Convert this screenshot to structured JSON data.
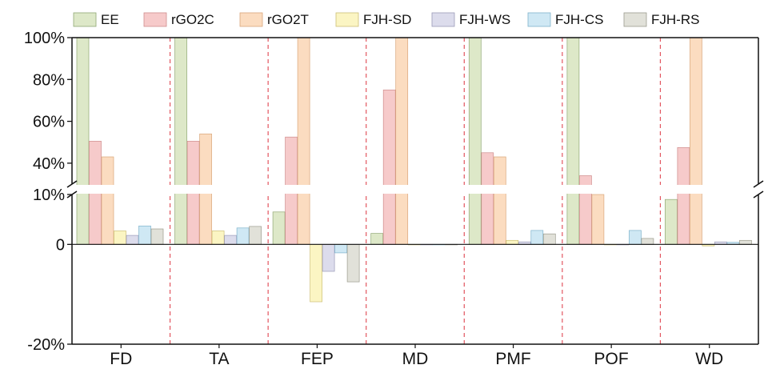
{
  "chart_data": {
    "type": "bar",
    "title": "",
    "xlabel": "",
    "ylabel": "",
    "axis_break": {
      "lower_range": [
        -20,
        10
      ],
      "upper_range": [
        30,
        100
      ],
      "break_between": [
        10,
        30
      ]
    },
    "yticks_lower": [
      {
        "value": -20,
        "label": "-20%"
      },
      {
        "value": 0,
        "label": "0"
      },
      {
        "value": 10,
        "label": "10%"
      }
    ],
    "yticks_upper": [
      {
        "value": 40,
        "label": "40%"
      },
      {
        "value": 60,
        "label": "60%"
      },
      {
        "value": 80,
        "label": "80%"
      },
      {
        "value": 100,
        "label": "100%"
      }
    ],
    "categories": [
      "FD",
      "TA",
      "FEP",
      "MD",
      "PMF",
      "POF",
      "WD"
    ],
    "legend_position": "top",
    "series": [
      {
        "name": "EE",
        "fill": "#dde8c8",
        "stroke": "#8fa874",
        "values": [
          100,
          100,
          6.5,
          2.2,
          100,
          100,
          9
        ]
      },
      {
        "name": "rGO2C",
        "fill": "#f6caca",
        "stroke": "#cf8c8c",
        "values": [
          50.5,
          50.5,
          52.5,
          75,
          45,
          34,
          47.5
        ]
      },
      {
        "name": "rGO2T",
        "fill": "#fbdcc0",
        "stroke": "#d9a67a",
        "values": [
          43,
          54,
          100,
          100,
          43,
          27,
          100
        ]
      },
      {
        "name": "FJH-SD",
        "fill": "#fbf5c3",
        "stroke": "#cdbf75",
        "values": [
          2.7,
          2.7,
          -11.5,
          0,
          0.8,
          0,
          -0.3
        ]
      },
      {
        "name": "FJH-WS",
        "fill": "#dcdcec",
        "stroke": "#9a9ab8",
        "values": [
          1.8,
          1.8,
          -5.4,
          0,
          0.5,
          0,
          0.5
        ]
      },
      {
        "name": "FJH-CS",
        "fill": "#cfe8f4",
        "stroke": "#7fb3cc",
        "values": [
          3.7,
          3.3,
          -1.7,
          0,
          2.8,
          2.8,
          0.4
        ]
      },
      {
        "name": "FJH-RS",
        "fill": "#e1e1d9",
        "stroke": "#9b9b8e",
        "values": [
          3.1,
          3.6,
          -7.5,
          0,
          2.1,
          1.2,
          0.8
        ]
      }
    ]
  }
}
